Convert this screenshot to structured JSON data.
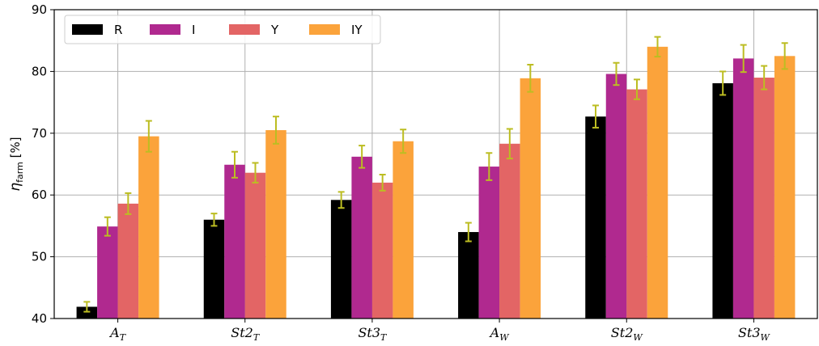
{
  "chart_data": {
    "type": "bar",
    "ylabel": {
      "symbol": "η",
      "sub": "farm",
      "unit": " [%]"
    },
    "ylim": [
      40,
      90
    ],
    "yticks": [
      40,
      50,
      60,
      70,
      80,
      90
    ],
    "grid": true,
    "legend_placement": "top-left",
    "categories": [
      {
        "base": "A",
        "sub": "T"
      },
      {
        "base": "St2",
        "sub": "T"
      },
      {
        "base": "St3",
        "sub": "T"
      },
      {
        "base": "A",
        "sub": "W"
      },
      {
        "base": "St2",
        "sub": "W"
      },
      {
        "base": "St3",
        "sub": "W"
      }
    ],
    "series": [
      {
        "name": "R",
        "color": "#000000",
        "values": [
          41.9,
          56.0,
          59.2,
          54.0,
          72.7,
          78.1
        ],
        "errors": [
          0.8,
          1.0,
          1.3,
          1.5,
          1.8,
          1.9
        ]
      },
      {
        "name": "I",
        "color": "#b0298f",
        "values": [
          54.9,
          64.9,
          66.2,
          64.6,
          79.6,
          82.1
        ],
        "errors": [
          1.5,
          2.1,
          1.8,
          2.2,
          1.8,
          2.2
        ]
      },
      {
        "name": "Y",
        "color": "#e36565",
        "values": [
          58.6,
          63.6,
          62.0,
          68.3,
          77.1,
          79.0
        ],
        "errors": [
          1.7,
          1.6,
          1.3,
          2.4,
          1.6,
          1.9
        ]
      },
      {
        "name": "IY",
        "color": "#fba33b",
        "values": [
          69.5,
          70.5,
          68.7,
          78.9,
          84.0,
          82.5
        ],
        "errors": [
          2.5,
          2.2,
          1.9,
          2.2,
          1.6,
          2.1
        ]
      }
    ],
    "error_bar_color": "#bcbd22"
  }
}
